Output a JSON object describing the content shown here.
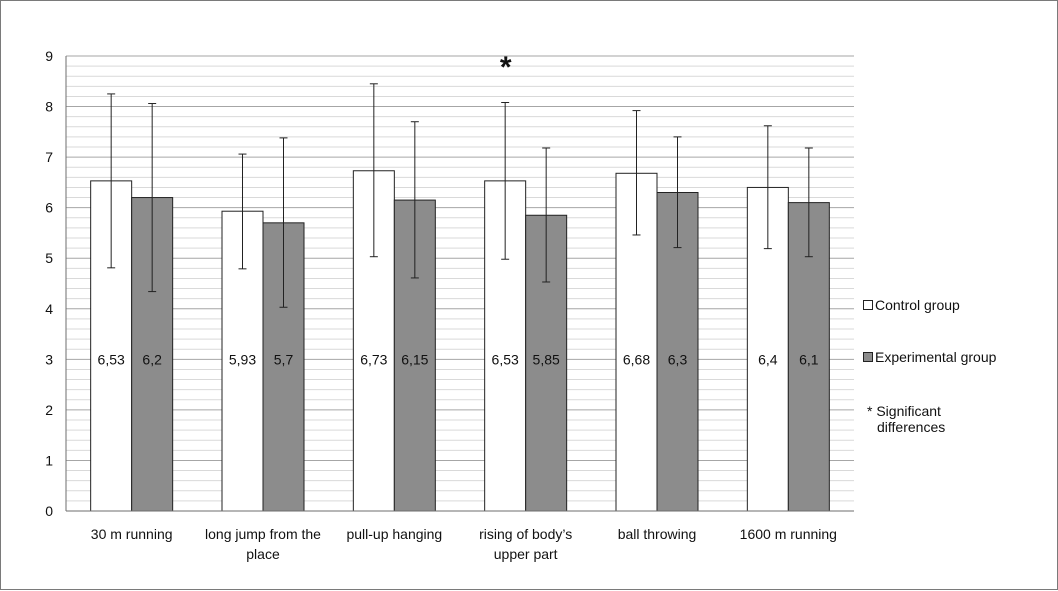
{
  "chart_data": {
    "type": "bar",
    "categories": [
      "30 m running",
      "long jump from the place",
      "pull-up hanging",
      "rising of body's upper part",
      "ball throwing",
      "1600 m running"
    ],
    "category_label_lines": [
      [
        "30 m running"
      ],
      [
        "long jump from the",
        "place"
      ],
      [
        "pull-up hanging"
      ],
      [
        "rising of body’s",
        "upper part"
      ],
      [
        "ball throwing"
      ],
      [
        "1600 m running"
      ]
    ],
    "series": [
      {
        "name": "Control group",
        "values": [
          6.53,
          5.93,
          6.73,
          6.53,
          6.68,
          6.4
        ],
        "value_labels": [
          "6,53",
          "5,93",
          "6,73",
          "6,53",
          "6,68",
          "6,4"
        ],
        "error_upper": [
          8.25,
          7.06,
          8.45,
          8.08,
          7.92,
          7.62
        ],
        "error_lower": [
          4.81,
          4.79,
          5.03,
          4.98,
          5.46,
          5.19
        ],
        "color": "#ffffff"
      },
      {
        "name": "Experimental group",
        "values": [
          6.2,
          5.7,
          6.15,
          5.85,
          6.3,
          6.1
        ],
        "value_labels": [
          "6,2",
          "5,7",
          "6,15",
          "5,85",
          "6,3",
          "6,1"
        ],
        "error_upper": [
          8.06,
          7.38,
          7.7,
          7.18,
          7.4,
          7.18
        ],
        "error_lower": [
          4.34,
          4.03,
          4.61,
          4.53,
          5.21,
          5.03
        ],
        "color": "#8c8c8c"
      }
    ],
    "ylim": [
      0,
      9
    ],
    "yticks": [
      "0",
      "1",
      "2",
      "3",
      "4",
      "5",
      "6",
      "7",
      "8",
      "9"
    ],
    "grid": true,
    "minor_grid_step": 0.2,
    "significance_marker": {
      "category_index": 3,
      "symbol": "*"
    },
    "legend_position": "right",
    "legend_note": [
      "* Significant",
      "differences"
    ]
  }
}
